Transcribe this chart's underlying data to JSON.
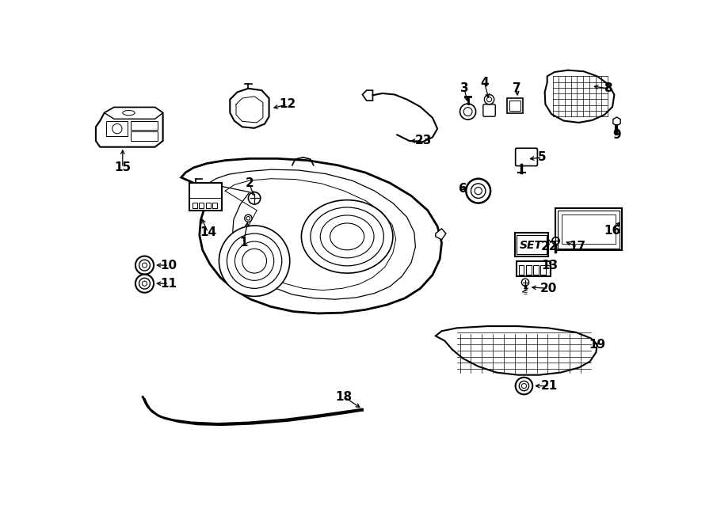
{
  "bg_color": "#ffffff",
  "line_color": "#000000",
  "lw_main": 1.5,
  "lw_thin": 0.8,
  "lw_grid": 0.5
}
